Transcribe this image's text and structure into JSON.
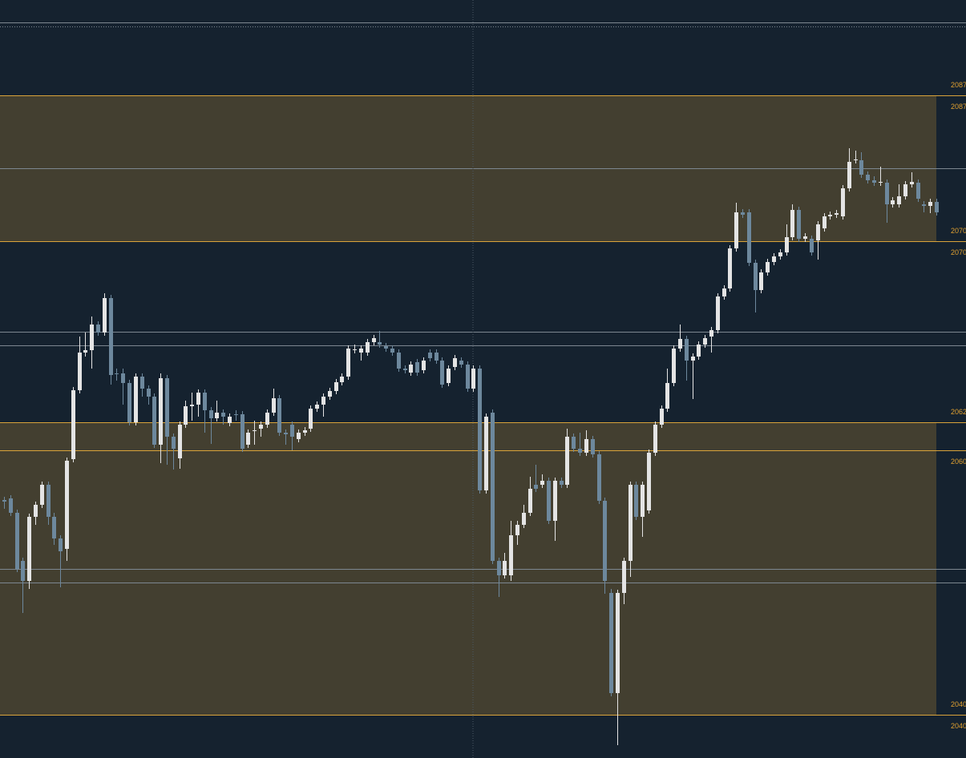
{
  "chart_data": {
    "type": "candlestick",
    "ylim": [
      2005.4,
      2100
    ],
    "up_color": "#e4e4e4",
    "down_color": "#6d889d",
    "zone_color": "#433f30",
    "level_color": "#d9a33a",
    "reference_color": "#7d8790",
    "levels": [
      {
        "value": 2088.1,
        "label_above": "2087",
        "label_below": "2087"
      },
      {
        "value": 2069.9,
        "label_above": "2070",
        "label_below": "2070"
      },
      {
        "value": 2047.3,
        "label_above": "2062"
      },
      {
        "value": 2043.8,
        "label_below": "2060"
      },
      {
        "value": 2010.8,
        "label_above": "2040",
        "label_below": "2040"
      }
    ],
    "zones": [
      {
        "from": 2088.1,
        "to": 2069.9
      },
      {
        "from": 2047.3,
        "to": 2010.8
      }
    ],
    "reference_lines": [
      2097.2,
      2079.0,
      2058.6,
      2056.9,
      2029.0,
      2027.3
    ],
    "dotted_lines": [
      2096.7
    ],
    "open": [
      2037.6,
      2037.8,
      2036.0,
      2030.0,
      2027.5,
      2035.5,
      2037.0,
      2039.5,
      2035.5,
      2032.8,
      2031.5,
      2042.7,
      2051.3,
      2056.0,
      2056.3,
      2059.5,
      2058.5,
      2062.8,
      2053.4,
      2053.4,
      2052.2,
      2047.3,
      2053.0,
      2051.5,
      2050.5,
      2044.5,
      2052.8,
      2045.5,
      2042.8,
      2047.0,
      2049.3,
      2049.5,
      2051.0,
      2048.8,
      2047.8,
      2048.5,
      2047.2,
      2048.3,
      2048.3,
      2044.5,
      2046.2,
      2046.5,
      2047.0,
      2048.5,
      2050.3,
      2046.0,
      2047.0,
      2045.2,
      2046.0,
      2046.5,
      2049.0,
      2049.5,
      2050.5,
      2051.2,
      2052.3,
      2053.0,
      2056.3,
      2056.0,
      2056.0,
      2057.3,
      2057.3,
      2056.8,
      2056.5,
      2056.0,
      2054.0,
      2053.5,
      2054.8,
      2053.8,
      2056.0,
      2056.0,
      2055.0,
      2052.2,
      2054.2,
      2055.0,
      2054.5,
      2051.5,
      2054.0,
      2038.8,
      2048.5,
      2030.0,
      2028.2,
      2028.2,
      2033.2,
      2034.5,
      2036.0,
      2039.5,
      2039.5,
      2040.0,
      2035.0,
      2040.0,
      2039.5,
      2045.5,
      2044.0,
      2043.5,
      2045.2,
      2043.3,
      2037.5,
      2026.0,
      2013.5,
      2026.0,
      2030.0,
      2039.5,
      2035.5,
      2036.3,
      2043.5,
      2047.0,
      2049.0,
      2052.2,
      2056.5,
      2057.7,
      2055.0,
      2055.5,
      2057.0,
      2058.0,
      2058.8,
      2063.0,
      2064.0,
      2069.0,
      2073.5,
      2073.5,
      2067.2,
      2063.8,
      2066.0,
      2067.3,
      2068.0,
      2068.5,
      2070.4,
      2073.8,
      2070.2,
      2070.2,
      2070.0,
      2071.5,
      2073.0,
      2073.2,
      2073.0,
      2076.5,
      2080.0,
      2080.0,
      2078.2,
      2077.5,
      2077.2,
      2077.2,
      2074.5,
      2074.5,
      2075.5,
      2077.0,
      2077.2,
      2074.5,
      2074.3,
      2074.8
    ],
    "high": [
      2038.0,
      2038.2,
      2036.4,
      2030.4,
      2035.9,
      2037.4,
      2039.9,
      2039.9,
      2036.0,
      2033.2,
      2042.9,
      2051.7,
      2058.0,
      2058.5,
      2060.5,
      2059.9,
      2063.4,
      2063.2,
      2054.0,
      2054.0,
      2052.6,
      2053.4,
      2053.4,
      2051.9,
      2050.9,
      2053.4,
      2053.2,
      2045.9,
      2047.4,
      2050.0,
      2051.0,
      2051.4,
      2051.4,
      2049.2,
      2050.0,
      2048.9,
      2048.4,
      2048.8,
      2048.7,
      2046.4,
      2047.5,
      2047.4,
      2048.9,
      2051.5,
      2050.7,
      2046.4,
      2047.4,
      2046.4,
      2046.7,
      2049.4,
      2049.9,
      2050.9,
      2051.6,
      2052.7,
      2053.4,
      2056.9,
      2057.0,
      2056.9,
      2057.7,
      2058.2,
      2058.7,
      2057.2,
      2056.9,
      2056.4,
      2054.4,
      2054.9,
      2055.2,
      2055.4,
      2056.4,
      2056.4,
      2055.4,
      2054.4,
      2055.7,
      2055.4,
      2054.9,
      2054.4,
      2054.4,
      2048.4,
      2048.9,
      2030.4,
      2031.0,
      2035.0,
      2035.0,
      2037.0,
      2040.5,
      2042.0,
      2040.8,
      2040.4,
      2040.4,
      2040.4,
      2046.5,
      2045.9,
      2046.0,
      2046.3,
      2045.6,
      2043.7,
      2037.9,
      2026.5,
      2026.4,
      2030.4,
      2039.9,
      2039.9,
      2039.9,
      2043.9,
      2047.4,
      2049.4,
      2054.0,
      2056.9,
      2059.5,
      2058.1,
      2055.9,
      2057.4,
      2058.2,
      2059.2,
      2063.4,
      2064.4,
      2069.4,
      2074.7,
      2073.9,
      2073.9,
      2067.6,
      2066.4,
      2067.7,
      2068.4,
      2068.9,
      2072.0,
      2074.5,
      2074.2,
      2070.9,
      2070.6,
      2072.4,
      2073.4,
      2073.6,
      2073.8,
      2076.9,
      2081.5,
      2081.2,
      2081.0,
      2078.6,
      2078.0,
      2079.2,
      2077.6,
      2075.4,
      2077.0,
      2077.4,
      2078.5,
      2077.6,
      2074.9,
      2075.2,
      2075.2
    ],
    "low": [
      2036.5,
      2035.6,
      2028.6,
      2023.5,
      2026.5,
      2034.5,
      2036.6,
      2034.5,
      2032.0,
      2026.7,
      2030.0,
      2042.3,
      2050.9,
      2055.5,
      2054.0,
      2058.1,
      2058.1,
      2052.0,
      2052.5,
      2049.5,
      2046.9,
      2046.9,
      2050.5,
      2049.5,
      2044.1,
      2042.2,
      2042.0,
      2041.4,
      2041.5,
      2046.6,
      2047.5,
      2048.0,
      2046.0,
      2044.6,
      2047.4,
      2047.0,
      2046.8,
      2047.5,
      2043.6,
      2044.1,
      2044.5,
      2045.5,
      2046.6,
      2048.1,
      2045.6,
      2044.5,
      2043.8,
      2044.8,
      2045.6,
      2046.1,
      2048.6,
      2048.0,
      2050.1,
      2050.8,
      2051.9,
      2052.6,
      2055.9,
      2055.0,
      2055.6,
      2056.9,
      2056.6,
      2056.1,
      2055.6,
      2053.6,
      2053.4,
      2053.1,
      2053.1,
      2053.4,
      2054.9,
      2054.6,
      2051.6,
      2051.8,
      2053.8,
      2054.1,
      2051.1,
      2051.1,
      2038.4,
      2038.4,
      2029.6,
      2025.5,
      2027.8,
      2027.5,
      2032.0,
      2034.1,
      2035.6,
      2038.6,
      2039.1,
      2034.6,
      2032.5,
      2039.1,
      2039.1,
      2043.6,
      2043.1,
      2043.1,
      2042.9,
      2037.1,
      2025.9,
      2013.1,
      2007.0,
      2024.6,
      2028.0,
      2035.1,
      2033.0,
      2035.9,
      2043.1,
      2046.6,
      2048.6,
      2051.8,
      2056.1,
      2052.5,
      2050.2,
      2055.1,
      2056.6,
      2056.0,
      2058.4,
      2062.6,
      2063.6,
      2068.6,
      2072.8,
      2066.8,
      2061.0,
      2063.4,
      2065.6,
      2066.9,
      2067.6,
      2068.1,
      2070.0,
      2069.8,
      2069.8,
      2068.1,
      2067.6,
      2071.1,
      2072.6,
      2072.8,
      2072.6,
      2076.1,
      2079.6,
      2077.8,
      2077.1,
      2076.8,
      2076.8,
      2072.2,
      2074.1,
      2074.1,
      2075.1,
      2076.6,
      2074.8,
      2073.5,
      2073.4,
      2073.1
    ],
    "close": [
      2037.4,
      2036.0,
      2029.0,
      2027.5,
      2035.5,
      2037.0,
      2039.5,
      2035.5,
      2032.8,
      2031.2,
      2042.5,
      2051.3,
      2056.0,
      2056.3,
      2059.5,
      2058.5,
      2062.8,
      2053.2,
      2053.3,
      2052.2,
      2047.3,
      2053.0,
      2051.5,
      2050.5,
      2044.5,
      2052.8,
      2045.5,
      2044.0,
      2047.0,
      2049.3,
      2049.5,
      2051.0,
      2048.8,
      2047.8,
      2048.5,
      2048.0,
      2048.0,
      2048.2,
      2044.0,
      2046.0,
      2046.3,
      2047.0,
      2048.5,
      2050.3,
      2046.0,
      2045.8,
      2045.5,
      2046.0,
      2046.3,
      2049.0,
      2049.5,
      2050.5,
      2051.2,
      2052.3,
      2053.0,
      2056.5,
      2056.4,
      2056.5,
      2057.3,
      2057.8,
      2057.0,
      2056.5,
      2056.0,
      2054.0,
      2053.8,
      2054.5,
      2053.5,
      2055.0,
      2055.3,
      2055.0,
      2052.0,
      2054.0,
      2055.3,
      2054.5,
      2051.5,
      2054.0,
      2038.8,
      2048.0,
      2030.0,
      2028.2,
      2030.0,
      2033.2,
      2034.5,
      2036.0,
      2039.0,
      2039.0,
      2040.0,
      2035.0,
      2040.0,
      2039.5,
      2045.5,
      2044.0,
      2043.5,
      2045.2,
      2043.3,
      2037.5,
      2027.5,
      2013.5,
      2026.0,
      2030.0,
      2039.5,
      2035.5,
      2039.5,
      2043.5,
      2047.0,
      2049.0,
      2052.2,
      2056.5,
      2057.7,
      2055.0,
      2055.5,
      2057.0,
      2057.8,
      2058.8,
      2063.0,
      2064.0,
      2069.0,
      2073.5,
      2073.2,
      2067.2,
      2063.8,
      2066.0,
      2067.3,
      2068.0,
      2068.5,
      2070.4,
      2073.8,
      2070.2,
      2070.5,
      2068.5,
      2072.0,
      2073.0,
      2073.2,
      2073.4,
      2076.5,
      2079.8,
      2080.1,
      2078.2,
      2077.5,
      2077.2,
      2077.3,
      2074.5,
      2075.0,
      2075.5,
      2077.0,
      2077.3,
      2075.2,
      2074.3,
      2074.8,
      2073.5
    ]
  }
}
